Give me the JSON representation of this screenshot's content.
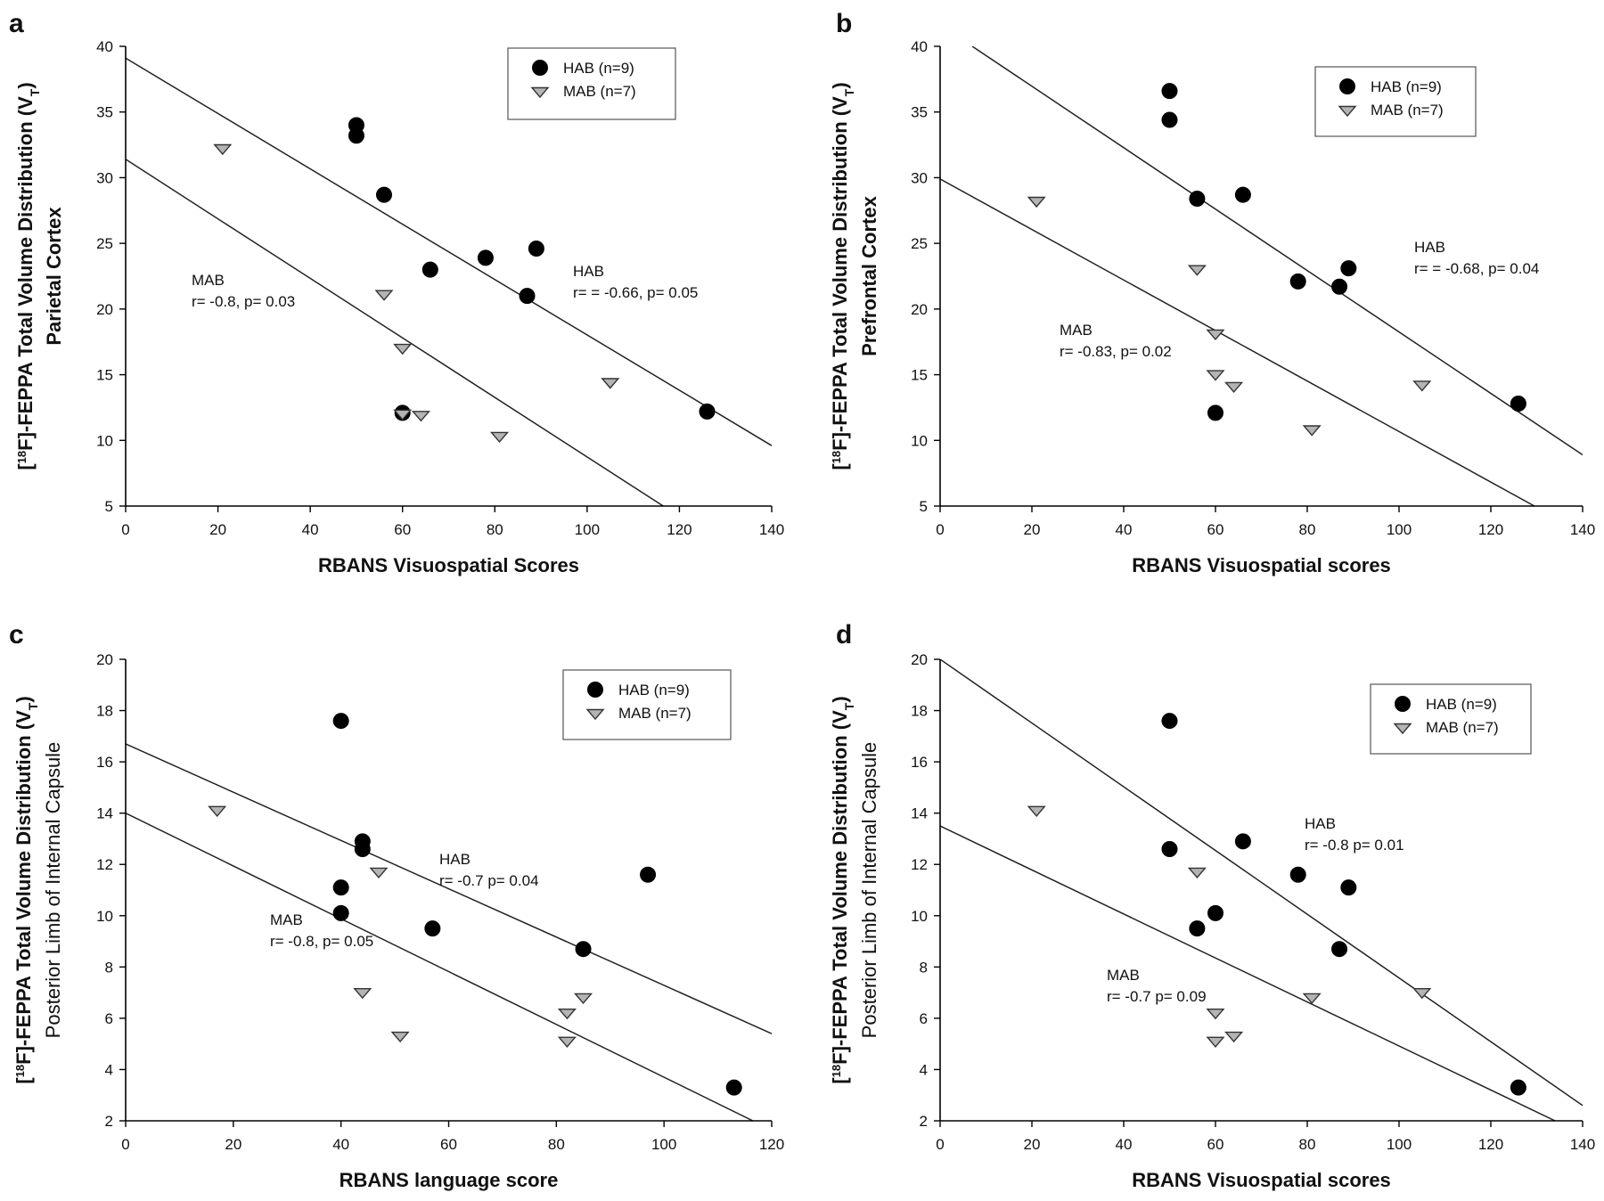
{
  "chart_data": [
    {
      "panel_letter": "a",
      "type": "scatter",
      "xlabel": "RBANS Visuospatial Scores",
      "ylabel_line1_prefix": "[",
      "ylabel_sup": "18",
      "ylabel_line1_mid": "F]-FEPPA Total Volume Distribution (V",
      "ylabel_sub": "T",
      "ylabel_line1_suffix": ")",
      "ylabel_line2": "Parietal Cortex",
      "xlim": [
        0,
        140
      ],
      "ylim": [
        5,
        40
      ],
      "xticks": [
        "0",
        "20",
        "40",
        "60",
        "80",
        "100",
        "120",
        "140"
      ],
      "yticks": [
        "5",
        "10",
        "15",
        "20",
        "25",
        "30",
        "35",
        "40"
      ],
      "legend": [
        {
          "marker": "circle",
          "label": "HAB  (n=9)"
        },
        {
          "marker": "triangle",
          "label": "MAB  (n=7)"
        }
      ],
      "series": [
        {
          "name": "HAB",
          "marker": "circle",
          "points": [
            [
              50,
              34
            ],
            [
              50,
              33.2
            ],
            [
              56,
              28.7
            ],
            [
              66,
              23
            ],
            [
              78,
              23.9
            ],
            [
              89,
              24.6
            ],
            [
              87,
              21
            ],
            [
              60,
              12.1
            ],
            [
              126,
              12.2
            ]
          ]
        },
        {
          "name": "MAB",
          "marker": "triangle",
          "points": [
            [
              21,
              32.2
            ],
            [
              56,
              21.1
            ],
            [
              60,
              17
            ],
            [
              60,
              12
            ],
            [
              64,
              11.9
            ],
            [
              81,
              10.3
            ],
            [
              105,
              14.4
            ]
          ]
        }
      ],
      "fit_lines": [
        {
          "name": "HAB",
          "from": [
            0,
            39.1
          ],
          "to": [
            140,
            9.6
          ]
        },
        {
          "name": "MAB",
          "from": [
            0,
            31.4
          ],
          "to": [
            116.5,
            5
          ]
        }
      ],
      "annotations": [
        {
          "line1": "MAB",
          "line2": "r= -0.8, p= 0.03"
        },
        {
          "line1": "HAB",
          "line2": "r= = -0.66, p= 0.05"
        }
      ]
    },
    {
      "panel_letter": "b",
      "type": "scatter",
      "xlabel": "RBANS Visuospatial scores",
      "ylabel_line1_prefix": "[",
      "ylabel_sup": "18",
      "ylabel_line1_mid": "F]-FEPPA Total Volume Distribution (V",
      "ylabel_sub": "T",
      "ylabel_line1_suffix": ")",
      "ylabel_line2": "Prefrontal Cortex",
      "xlim": [
        0,
        140
      ],
      "ylim": [
        5,
        40
      ],
      "xticks": [
        "0",
        "20",
        "40",
        "60",
        "80",
        "100",
        "120",
        "140"
      ],
      "yticks": [
        "5",
        "10",
        "15",
        "20",
        "25",
        "30",
        "35",
        "40"
      ],
      "legend": [
        {
          "marker": "circle",
          "label": "HAB  (n=9)"
        },
        {
          "marker": "triangle",
          "label": "MAB  (n=7)"
        }
      ],
      "series": [
        {
          "name": "HAB",
          "marker": "circle",
          "points": [
            [
              50,
              36.6
            ],
            [
              50,
              34.4
            ],
            [
              56,
              28.4
            ],
            [
              66,
              28.7
            ],
            [
              78,
              22.1
            ],
            [
              87,
              21.7
            ],
            [
              89,
              23.1
            ],
            [
              60,
              12.1
            ],
            [
              126,
              12.8
            ]
          ]
        },
        {
          "name": "MAB",
          "marker": "triangle",
          "points": [
            [
              21,
              28.2
            ],
            [
              56,
              23
            ],
            [
              60,
              18.1
            ],
            [
              60,
              15
            ],
            [
              64,
              14.1
            ],
            [
              81,
              10.8
            ],
            [
              105,
              14.2
            ]
          ]
        }
      ],
      "fit_lines": [
        {
          "name": "HAB",
          "from": [
            7,
            40
          ],
          "to": [
            140,
            8.9
          ]
        },
        {
          "name": "MAB",
          "from": [
            0,
            29.9
          ],
          "to": [
            129.5,
            5
          ]
        }
      ],
      "annotations": [
        {
          "line1": "HAB",
          "line2": "r= = -0.68, p= 0.04"
        },
        {
          "line1": "MAB",
          "line2": "r= -0.83, p= 0.02"
        }
      ]
    },
    {
      "panel_letter": "c",
      "type": "scatter",
      "xlabel": "RBANS language score",
      "ylabel_line1_prefix": "[",
      "ylabel_sup": "18",
      "ylabel_line1_mid": "F]-FEPPA Total Volume Distribution (V",
      "ylabel_sub": "T",
      "ylabel_line1_suffix": ")",
      "ylabel_line2": "Posterior Limb of Internal Capsule",
      "xlim": [
        0,
        120
      ],
      "ylim": [
        2,
        20
      ],
      "xticks": [
        "0",
        "20",
        "40",
        "60",
        "80",
        "100",
        "120"
      ],
      "yticks": [
        "2",
        "4",
        "6",
        "8",
        "10",
        "12",
        "14",
        "16",
        "18",
        "20"
      ],
      "legend": [
        {
          "marker": "circle",
          "label": "HAB (n=9)"
        },
        {
          "marker": "triangle",
          "label": "MAB (n=7)"
        }
      ],
      "series": [
        {
          "name": "HAB",
          "marker": "circle",
          "points": [
            [
              40,
              17.6
            ],
            [
              44,
              12.9
            ],
            [
              44,
              12.6
            ],
            [
              40,
              11.1
            ],
            [
              40,
              10.1
            ],
            [
              57,
              9.5
            ],
            [
              85,
              8.7
            ],
            [
              97,
              11.6
            ],
            [
              113,
              3.3
            ]
          ]
        },
        {
          "name": "MAB",
          "marker": "triangle",
          "points": [
            [
              17,
              14.1
            ],
            [
              47,
              11.7
            ],
            [
              44,
              7
            ],
            [
              51,
              5.3
            ],
            [
              82,
              6.2
            ],
            [
              85,
              6.8
            ],
            [
              82,
              5.1
            ]
          ]
        }
      ],
      "fit_lines": [
        {
          "name": "HAB",
          "from": [
            0,
            16.7
          ],
          "to": [
            120,
            5.4
          ]
        },
        {
          "name": "MAB",
          "from": [
            0,
            14
          ],
          "to": [
            116.5,
            2
          ]
        }
      ],
      "annotations": [
        {
          "line1": "HAB",
          "line2": "r= -0.7 p= 0.04"
        },
        {
          "line1": "MAB",
          "line2": "r= -0.8, p= 0.05"
        }
      ]
    },
    {
      "panel_letter": "d",
      "type": "scatter",
      "xlabel": "RBANS Visuospatial scores",
      "ylabel_line1_prefix": "[",
      "ylabel_sup": "18",
      "ylabel_line1_mid": "F]-FEPPA Total Volume Distribution (V",
      "ylabel_sub": "T",
      "ylabel_line1_suffix": ")",
      "ylabel_line2": "Posterior Limb of Internal Capsule",
      "xlim": [
        0,
        140
      ],
      "ylim": [
        2,
        20
      ],
      "xticks": [
        "0",
        "20",
        "40",
        "60",
        "80",
        "100",
        "120",
        "140"
      ],
      "yticks": [
        "2",
        "4",
        "6",
        "8",
        "10",
        "12",
        "14",
        "16",
        "18",
        "20"
      ],
      "legend": [
        {
          "marker": "circle",
          "label": "HAB (n=9)"
        },
        {
          "marker": "triangle",
          "label": "MAB (n=7)"
        }
      ],
      "series": [
        {
          "name": "HAB",
          "marker": "circle",
          "points": [
            [
              50,
              17.6
            ],
            [
              50,
              12.6
            ],
            [
              66,
              12.9
            ],
            [
              60,
              10.1
            ],
            [
              56,
              9.5
            ],
            [
              78,
              11.6
            ],
            [
              89,
              11.1
            ],
            [
              87,
              8.7
            ],
            [
              126,
              3.3
            ]
          ]
        },
        {
          "name": "MAB",
          "marker": "triangle",
          "points": [
            [
              21,
              14.1
            ],
            [
              56,
              11.7
            ],
            [
              60,
              6.2
            ],
            [
              60,
              5.1
            ],
            [
              64,
              5.3
            ],
            [
              81,
              6.8
            ],
            [
              105,
              7
            ]
          ]
        }
      ],
      "fit_lines": [
        {
          "name": "HAB",
          "from": [
            0,
            20
          ],
          "to": [
            140,
            2.6
          ]
        },
        {
          "name": "MAB",
          "from": [
            0,
            13.5
          ],
          "to": [
            134,
            2
          ]
        }
      ],
      "annotations": [
        {
          "line1": "HAB",
          "line2": "r= -0.8 p= 0.01"
        },
        {
          "line1": "MAB",
          "line2": "r= -0.7 p= 0.09"
        }
      ]
    }
  ]
}
